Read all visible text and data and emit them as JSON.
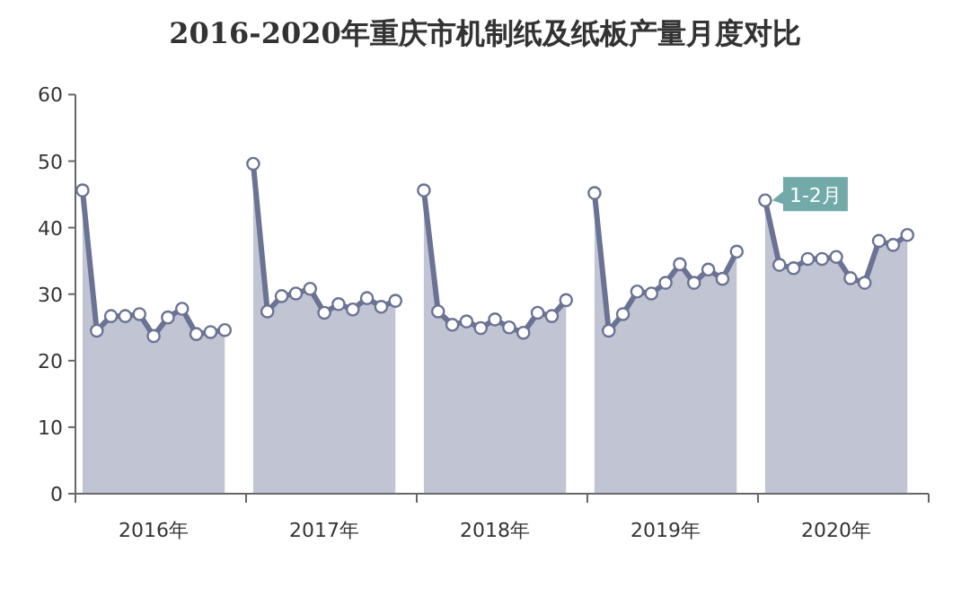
{
  "chart_data": {
    "type": "area",
    "title": "2016-2020年重庆市机制纸及纸板产量月度对比",
    "categories": [
      null,
      null,
      null,
      null,
      null,
      "2016年",
      null,
      null,
      null,
      null,
      null,
      null,
      null,
      null,
      null,
      null,
      null,
      "2017年",
      null,
      null,
      null,
      null,
      null,
      null,
      null,
      null,
      null,
      null,
      null,
      "2018年",
      null,
      null,
      null,
      null,
      null,
      null,
      null,
      null,
      null,
      null,
      null,
      "2019年",
      null,
      null,
      null,
      null,
      null,
      null,
      null,
      null,
      null,
      null,
      null,
      "2020年",
      null,
      null,
      null,
      null,
      null,
      null
    ],
    "series": [
      {
        "color": "#6b7394",
        "marker": "circle",
        "line_style": "solid",
        "values": [
          45.6,
          24.5,
          26.7,
          26.7,
          27.0,
          23.7,
          26.5,
          27.8,
          24.0,
          24.3,
          24.6,
          null,
          49.6,
          27.4,
          29.7,
          30.1,
          30.8,
          27.2,
          28.5,
          27.7,
          29.4,
          28.1,
          29.0,
          null,
          45.6,
          27.4,
          25.4,
          25.9,
          24.9,
          26.2,
          25.0,
          24.2,
          27.2,
          26.7,
          29.1,
          null,
          45.2,
          24.5,
          27.0,
          30.4,
          30.1,
          31.7,
          34.5,
          31.7,
          33.7,
          32.3,
          36.4,
          null,
          44.1,
          34.4,
          33.9,
          35.3,
          35.3,
          35.6,
          32.4,
          31.7,
          38.0,
          37.4,
          38.9,
          null
        ]
      }
    ],
    "ylim": [
      0,
      60
    ],
    "yticks": [
      0,
      10,
      20,
      30,
      40,
      50,
      60
    ],
    "annotations": [
      "1-2月"
    ],
    "legend": false,
    "grid": false
  }
}
